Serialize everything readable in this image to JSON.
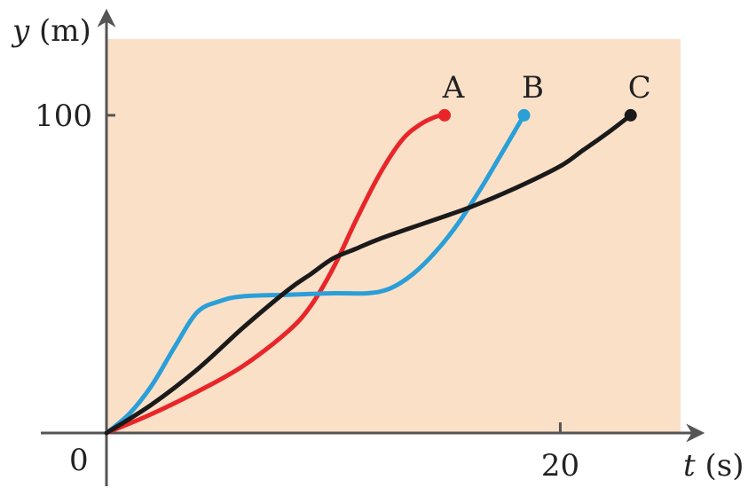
{
  "chart_data": {
    "type": "line",
    "xlabel_var": "t",
    "xlabel_unit": " (s)",
    "ylabel_var": "y",
    "ylabel_unit": " (m)",
    "origin_label": "0",
    "x_ticks": [
      {
        "value": 20,
        "label": "20"
      }
    ],
    "y_ticks": [
      {
        "value": 100,
        "label": "100"
      }
    ],
    "xlim": [
      0,
      25.3
    ],
    "ylim": [
      0,
      124
    ],
    "colors": {
      "background": "#fbe0c8",
      "axis": "#555555"
    },
    "series": [
      {
        "name": "A",
        "color": "#e8262a",
        "x": [
          0,
          2,
          4,
          6,
          8,
          9,
          10,
          11,
          12,
          13,
          13.8,
          14.5,
          14.9
        ],
        "y": [
          0,
          6,
          13,
          21,
          32,
          40,
          52,
          67,
          81,
          92,
          97,
          99.5,
          100
        ]
      },
      {
        "name": "B",
        "color": "#2a9fd8",
        "x": [
          0,
          1,
          2,
          3,
          4,
          5,
          6,
          8,
          10,
          11.5,
          12.5,
          13.5,
          14.5,
          15.5,
          16.5,
          17.5,
          18.4
        ],
        "y": [
          0,
          6,
          15,
          27,
          38,
          41.5,
          43,
          43.5,
          44,
          44,
          45.5,
          50,
          57,
          66,
          77,
          89,
          100
        ]
      },
      {
        "name": "C",
        "color": "#1a1a1a",
        "x": [
          0,
          2,
          4,
          6,
          8,
          9,
          10,
          11,
          12,
          14,
          16,
          18,
          20,
          21,
          22,
          23.1
        ],
        "y": [
          0,
          9,
          20,
          33,
          45,
          50,
          55,
          58,
          61,
          66,
          71,
          77,
          84,
          89,
          94,
          100
        ]
      }
    ]
  }
}
